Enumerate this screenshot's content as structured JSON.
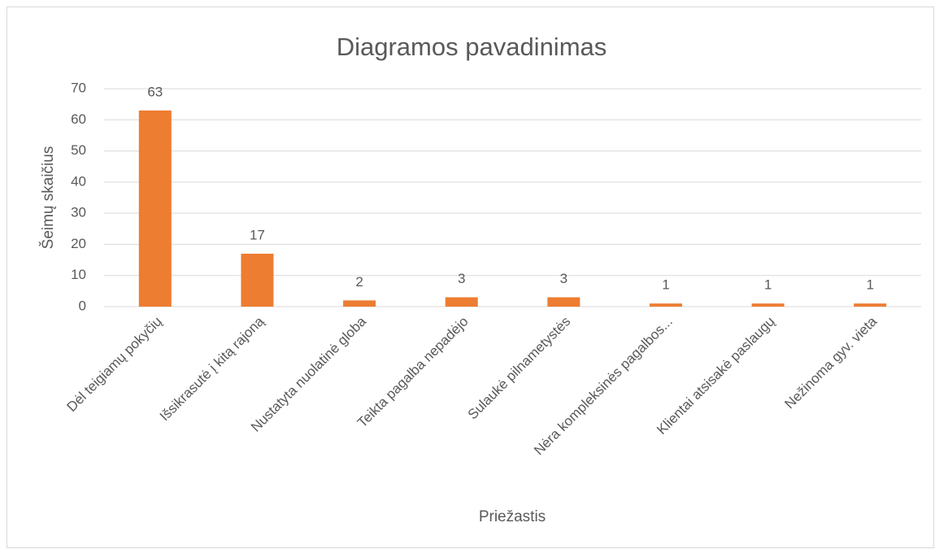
{
  "chart_data": {
    "type": "bar",
    "title": "Diagramos pavadinimas",
    "x_label": "Priežastis",
    "y_label": "Šeimų skaičius",
    "categories": [
      "Dėl teigiamų pokyčių",
      "Išsikrasutė į kitą rajoną",
      "Nustatyta nuolatinė globa",
      "Teikta pagalba nepadėjo",
      "Sulaukė pilnametystės",
      "Nėra kompleksinės pagalbos...",
      "Klientai atsisakė paslaugų",
      "Nežinoma gyv. vieta"
    ],
    "values": [
      63,
      17,
      2,
      3,
      3,
      1,
      1,
      1
    ],
    "color": "#ed7d31",
    "ylim": [
      0,
      70
    ],
    "yticks": [
      0,
      10,
      20,
      30,
      40,
      50,
      60,
      70
    ],
    "grid": true
  }
}
